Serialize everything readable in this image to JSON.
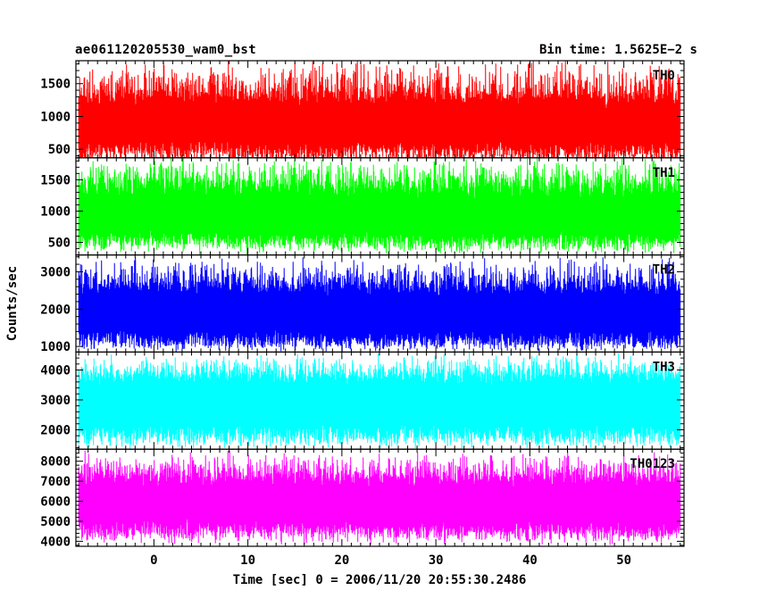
{
  "chart_data": {
    "type": "line",
    "title": "ae061120205530_wam0_bst",
    "bin_time_label": "Bin time: 1.5625E−2 s",
    "ylabel": "Counts/sec",
    "xlabel": "Time [sec] 0 = 2006/11/20 20:55:30.2486",
    "xlim": [
      -8.3,
      56.4
    ],
    "data_x_range": [
      -8.0,
      56.0
    ],
    "xticks": [
      0,
      10,
      20,
      30,
      40,
      50
    ],
    "bin_time_s": 0.015625,
    "panels": [
      {
        "name": "TH0",
        "color": "#ff0000",
        "ylim": [
          370,
          1850
        ],
        "yticks": [
          500,
          1000,
          1500
        ],
        "level_profile": [
          [
            -8,
            900
          ],
          [
            -4,
            930
          ],
          [
            0,
            910
          ],
          [
            4,
            920
          ],
          [
            8,
            900
          ],
          [
            12,
            880
          ],
          [
            16,
            900
          ],
          [
            20,
            890
          ],
          [
            24,
            900
          ],
          [
            28,
            890
          ],
          [
            32,
            880
          ],
          [
            36,
            870
          ],
          [
            40,
            880
          ],
          [
            44,
            880
          ],
          [
            48,
            870
          ],
          [
            52,
            860
          ],
          [
            56,
            860
          ]
        ],
        "low_range": [
          250,
          450
        ],
        "high_range": [
          1300,
          1900
        ]
      },
      {
        "name": "TH1",
        "color": "#00ff00",
        "ylim": [
          300,
          1850
        ],
        "yticks": [
          500,
          1000,
          1500
        ],
        "level_profile": [
          [
            -8,
            950
          ],
          [
            -4,
            970
          ],
          [
            0,
            960
          ],
          [
            4,
            960
          ],
          [
            8,
            950
          ],
          [
            12,
            940
          ],
          [
            16,
            950
          ],
          [
            20,
            950
          ],
          [
            24,
            940
          ],
          [
            28,
            950
          ],
          [
            32,
            940
          ],
          [
            36,
            930
          ],
          [
            40,
            940
          ],
          [
            44,
            950
          ],
          [
            48,
            940
          ],
          [
            52,
            930
          ],
          [
            56,
            930
          ]
        ],
        "low_range": [
          300,
          500
        ],
        "high_range": [
          1400,
          1900
        ]
      },
      {
        "name": "TH2",
        "color": "#0000ff",
        "ylim": [
          850,
          3450
        ],
        "yticks": [
          1000,
          2000,
          3000
        ],
        "level_profile": [
          [
            -8,
            2000
          ],
          [
            -4,
            2150
          ],
          [
            0,
            2050
          ],
          [
            4,
            2100
          ],
          [
            8,
            2000
          ],
          [
            12,
            2050
          ],
          [
            16,
            1950
          ],
          [
            20,
            1900
          ],
          [
            24,
            1850
          ],
          [
            28,
            1900
          ],
          [
            32,
            1950
          ],
          [
            36,
            1950
          ],
          [
            40,
            1950
          ],
          [
            44,
            1950
          ],
          [
            48,
            1950
          ],
          [
            52,
            1950
          ],
          [
            56,
            1900
          ]
        ],
        "low_range": [
          850,
          1050
        ],
        "high_range": [
          2600,
          3450
        ]
      },
      {
        "name": "TH3",
        "color": "#00ffff",
        "ylim": [
          1350,
          4600
        ],
        "yticks": [
          2000,
          3000,
          4000
        ],
        "level_profile": [
          [
            -8,
            2900
          ],
          [
            -4,
            2950
          ],
          [
            0,
            2900
          ],
          [
            4,
            2950
          ],
          [
            8,
            2900
          ],
          [
            12,
            2900
          ],
          [
            16,
            2900
          ],
          [
            20,
            2850
          ],
          [
            24,
            2850
          ],
          [
            28,
            2900
          ],
          [
            32,
            2900
          ],
          [
            36,
            2900
          ],
          [
            40,
            2900
          ],
          [
            44,
            2900
          ],
          [
            48,
            2900
          ],
          [
            52,
            2900
          ],
          [
            56,
            2900
          ]
        ],
        "low_range": [
          1350,
          1700
        ],
        "high_range": [
          3900,
          4600
        ]
      },
      {
        "name": "TH0123",
        "color": "#ff00ff",
        "ylim": [
          3750,
          8600
        ],
        "yticks": [
          4000,
          5000,
          6000,
          7000,
          8000
        ],
        "level_profile": [
          [
            -8,
            5900
          ],
          [
            -4,
            6050
          ],
          [
            0,
            5950
          ],
          [
            4,
            6000
          ],
          [
            8,
            5900
          ],
          [
            12,
            5950
          ],
          [
            16,
            5900
          ],
          [
            20,
            5850
          ],
          [
            24,
            5800
          ],
          [
            28,
            5850
          ],
          [
            32,
            5850
          ],
          [
            36,
            5850
          ],
          [
            40,
            5850
          ],
          [
            44,
            5850
          ],
          [
            48,
            5850
          ],
          [
            52,
            5850
          ],
          [
            56,
            5800
          ]
        ],
        "low_range": [
          3800,
          4500
        ],
        "high_range": [
          7300,
          8600
        ]
      }
    ]
  }
}
